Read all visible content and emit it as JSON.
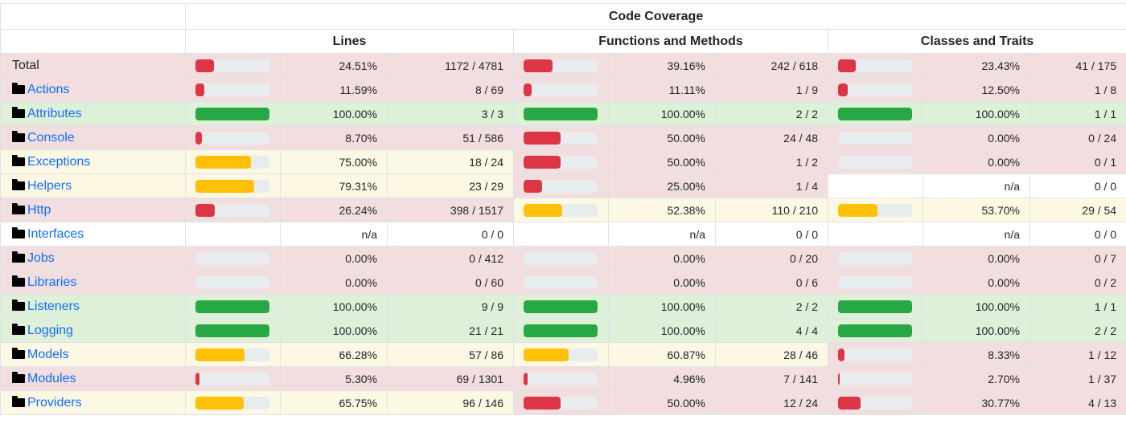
{
  "headers": {
    "title": "Code Coverage",
    "lines": "Lines",
    "functions": "Functions and Methods",
    "classes": "Classes and Traits"
  },
  "colors": {
    "danger_bar": "#dc3545",
    "warning_bar": "#ffc107",
    "success_bar": "#28a745",
    "link": "#0d6efd"
  },
  "rows": [
    {
      "name": "Total",
      "is_dir": false,
      "lines": {
        "pct": "24.51%",
        "count": "1172 / 4781",
        "level": "danger",
        "fill": 0.2451
      },
      "functions": {
        "pct": "39.16%",
        "count": "242 / 618",
        "level": "danger",
        "fill": 0.3916
      },
      "classes": {
        "pct": "23.43%",
        "count": "41 / 175",
        "level": "danger",
        "fill": 0.2343
      }
    },
    {
      "name": "Actions",
      "is_dir": true,
      "lines": {
        "pct": "11.59%",
        "count": "8 / 69",
        "level": "danger",
        "fill": 0.1159
      },
      "functions": {
        "pct": "11.11%",
        "count": "1 / 9",
        "level": "danger",
        "fill": 0.1111
      },
      "classes": {
        "pct": "12.50%",
        "count": "1 / 8",
        "level": "danger",
        "fill": 0.125
      }
    },
    {
      "name": "Attributes",
      "is_dir": true,
      "lines": {
        "pct": "100.00%",
        "count": "3 / 3",
        "level": "success",
        "fill": 1
      },
      "functions": {
        "pct": "100.00%",
        "count": "2 / 2",
        "level": "success",
        "fill": 1
      },
      "classes": {
        "pct": "100.00%",
        "count": "1 / 1",
        "level": "success",
        "fill": 1
      }
    },
    {
      "name": "Console",
      "is_dir": true,
      "lines": {
        "pct": "8.70%",
        "count": "51 / 586",
        "level": "danger",
        "fill": 0.087
      },
      "functions": {
        "pct": "50.00%",
        "count": "24 / 48",
        "level": "danger",
        "fill": 0.5
      },
      "classes": {
        "pct": "0.00%",
        "count": "0 / 24",
        "level": "danger",
        "fill": 0
      }
    },
    {
      "name": "Exceptions",
      "is_dir": true,
      "lines": {
        "pct": "75.00%",
        "count": "18 / 24",
        "level": "warning",
        "fill": 0.75
      },
      "functions": {
        "pct": "50.00%",
        "count": "1 / 2",
        "level": "danger",
        "fill": 0.5
      },
      "classes": {
        "pct": "0.00%",
        "count": "0 / 1",
        "level": "danger",
        "fill": 0
      }
    },
    {
      "name": "Helpers",
      "is_dir": true,
      "lines": {
        "pct": "79.31%",
        "count": "23 / 29",
        "level": "warning",
        "fill": 0.7931
      },
      "functions": {
        "pct": "25.00%",
        "count": "1 / 4",
        "level": "danger",
        "fill": 0.25
      },
      "classes": {
        "pct": "n/a",
        "count": "0 / 0",
        "level": "none",
        "fill": null
      }
    },
    {
      "name": "Http",
      "is_dir": true,
      "lines": {
        "pct": "26.24%",
        "count": "398 / 1517",
        "level": "danger",
        "fill": 0.2624
      },
      "functions": {
        "pct": "52.38%",
        "count": "110 / 210",
        "level": "warning",
        "fill": 0.5238
      },
      "classes": {
        "pct": "53.70%",
        "count": "29 / 54",
        "level": "warning",
        "fill": 0.537
      }
    },
    {
      "name": "Interfaces",
      "is_dir": true,
      "lines": {
        "pct": "n/a",
        "count": "0 / 0",
        "level": "none",
        "fill": null
      },
      "functions": {
        "pct": "n/a",
        "count": "0 / 0",
        "level": "none",
        "fill": null
      },
      "classes": {
        "pct": "n/a",
        "count": "0 / 0",
        "level": "none",
        "fill": null
      }
    },
    {
      "name": "Jobs",
      "is_dir": true,
      "lines": {
        "pct": "0.00%",
        "count": "0 / 412",
        "level": "danger",
        "fill": 0
      },
      "functions": {
        "pct": "0.00%",
        "count": "0 / 20",
        "level": "danger",
        "fill": 0
      },
      "classes": {
        "pct": "0.00%",
        "count": "0 / 7",
        "level": "danger",
        "fill": 0
      }
    },
    {
      "name": "Libraries",
      "is_dir": true,
      "lines": {
        "pct": "0.00%",
        "count": "0 / 60",
        "level": "danger",
        "fill": 0
      },
      "functions": {
        "pct": "0.00%",
        "count": "0 / 6",
        "level": "danger",
        "fill": 0
      },
      "classes": {
        "pct": "0.00%",
        "count": "0 / 2",
        "level": "danger",
        "fill": 0
      }
    },
    {
      "name": "Listeners",
      "is_dir": true,
      "lines": {
        "pct": "100.00%",
        "count": "9 / 9",
        "level": "success",
        "fill": 1
      },
      "functions": {
        "pct": "100.00%",
        "count": "2 / 2",
        "level": "success",
        "fill": 1
      },
      "classes": {
        "pct": "100.00%",
        "count": "1 / 1",
        "level": "success",
        "fill": 1
      }
    },
    {
      "name": "Logging",
      "is_dir": true,
      "lines": {
        "pct": "100.00%",
        "count": "21 / 21",
        "level": "success",
        "fill": 1
      },
      "functions": {
        "pct": "100.00%",
        "count": "4 / 4",
        "level": "success",
        "fill": 1
      },
      "classes": {
        "pct": "100.00%",
        "count": "2 / 2",
        "level": "success",
        "fill": 1
      }
    },
    {
      "name": "Models",
      "is_dir": true,
      "lines": {
        "pct": "66.28%",
        "count": "57 / 86",
        "level": "warning",
        "fill": 0.6628
      },
      "functions": {
        "pct": "60.87%",
        "count": "28 / 46",
        "level": "warning",
        "fill": 0.6087
      },
      "classes": {
        "pct": "8.33%",
        "count": "1 / 12",
        "level": "danger",
        "fill": 0.0833
      }
    },
    {
      "name": "Modules",
      "is_dir": true,
      "lines": {
        "pct": "5.30%",
        "count": "69 / 1301",
        "level": "danger",
        "fill": 0.053
      },
      "functions": {
        "pct": "4.96%",
        "count": "7 / 141",
        "level": "danger",
        "fill": 0.0496
      },
      "classes": {
        "pct": "2.70%",
        "count": "1 / 37",
        "level": "danger",
        "fill": 0.027
      }
    },
    {
      "name": "Providers",
      "is_dir": true,
      "lines": {
        "pct": "65.75%",
        "count": "96 / 146",
        "level": "warning",
        "fill": 0.6575
      },
      "functions": {
        "pct": "50.00%",
        "count": "12 / 24",
        "level": "danger",
        "fill": 0.5
      },
      "classes": {
        "pct": "30.77%",
        "count": "4 / 13",
        "level": "danger",
        "fill": 0.3077
      }
    }
  ]
}
